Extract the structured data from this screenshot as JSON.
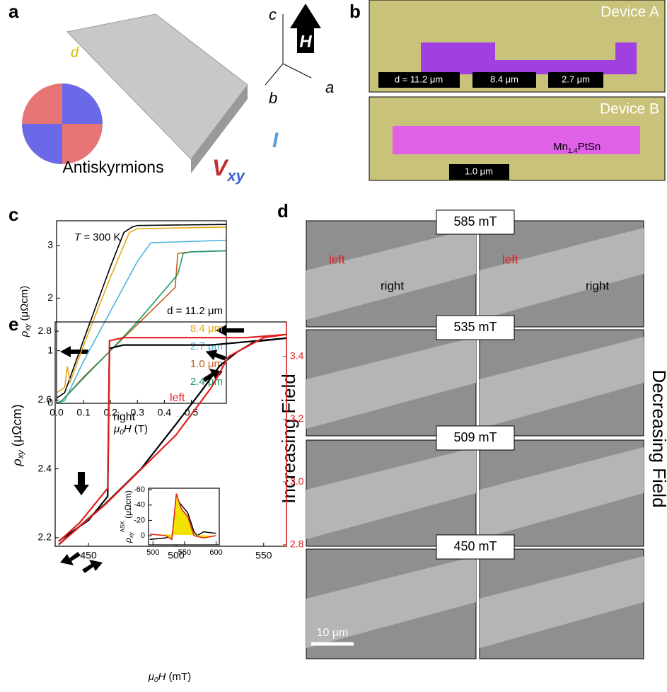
{
  "panels": {
    "a": {
      "label": "a",
      "caption": "Antiskyrmions",
      "thickness": "d",
      "axes": [
        "c",
        "b",
        "a"
      ],
      "field": "H",
      "voltage": [
        "V",
        "xy"
      ],
      "current": "I"
    },
    "b": {
      "label": "b",
      "device_a": "Device A",
      "widths": [
        "d = 11.2 μm",
        "8.4 μm",
        "2.7 μm"
      ],
      "device_b": "Device B",
      "material": [
        "Mn",
        "1.4",
        "PtSn"
      ],
      "width_b": "1.0 μm"
    },
    "d": {
      "label": "d",
      "fields": [
        "585 mT",
        "535 mT",
        "509 mT",
        "450 mT"
      ],
      "left": "left",
      "right": "right",
      "increasing": "Increasing Field",
      "decreasing": "Decreasing Field",
      "scale": "10 μm"
    }
  },
  "chart_data": [
    {
      "type": "line",
      "label": "c",
      "annotation": [
        "T",
        " = 300 K"
      ],
      "xlabel": [
        "μ",
        "0",
        "H",
        " (T)"
      ],
      "ylabel": [
        "ρ",
        "xy",
        " (μΩcm)"
      ],
      "xlim": [
        0,
        0.63
      ],
      "ylim": [
        0,
        3.47
      ],
      "xticks": [
        {
          "value": 0,
          "label": "0.0"
        },
        0.1,
        0.2,
        0.3,
        0.4,
        0.5
      ],
      "yticks": [
        0,
        1,
        2,
        3
      ],
      "series": [
        {
          "name": "d = 11.2 μm",
          "color": "#000000",
          "x": [
            0,
            0.03,
            0.1,
            0.2,
            0.25,
            0.28,
            0.3,
            0.63
          ],
          "values": [
            0.1,
            0.2,
            1.2,
            2.6,
            3.25,
            3.35,
            3.38,
            3.4
          ]
        },
        {
          "name": "8.4 μm",
          "color": "#e6a817",
          "x": [
            0,
            0.03,
            0.04,
            0.05,
            0.1,
            0.2,
            0.27,
            0.3,
            0.63
          ],
          "values": [
            0.2,
            0.3,
            0.7,
            0.4,
            1.1,
            2.4,
            3.25,
            3.32,
            3.35
          ]
        },
        {
          "name": "2.7 μm",
          "color": "#4eb3e0",
          "x": [
            0,
            0.03,
            0.1,
            0.2,
            0.3,
            0.35,
            0.63
          ],
          "values": [
            0,
            0.05,
            0.8,
            1.75,
            2.7,
            3.05,
            3.1
          ]
        },
        {
          "name": "1.0 μm",
          "color": "#c0601a",
          "x": [
            0,
            0.02,
            0.1,
            0.2,
            0.3,
            0.44,
            0.45,
            0.5,
            0.63
          ],
          "values": [
            0,
            0.05,
            0.5,
            1.0,
            1.5,
            2.2,
            2.85,
            2.88,
            2.9
          ]
        },
        {
          "name": "2.4 μm",
          "color": "#1a9a6a",
          "x": [
            0,
            0.02,
            0.1,
            0.2,
            0.3,
            0.45,
            0.47,
            0.5,
            0.63
          ],
          "values": [
            0,
            0.05,
            0.48,
            1.0,
            1.55,
            2.45,
            2.85,
            2.88,
            2.9
          ]
        }
      ]
    },
    {
      "type": "line",
      "label": "e",
      "xlabel": [
        "μ",
        "0",
        "H",
        " (mT)"
      ],
      "ylabel": [
        "ρ",
        "xy",
        " (μΩcm)"
      ],
      "xlim": [
        431,
        563
      ],
      "ylim": [
        2.175,
        2.827
      ],
      "y2lim": [
        2.795,
        3.51
      ],
      "xticks": [
        450,
        500,
        550
      ],
      "yticks": [
        2.2,
        2.4,
        2.6,
        2.8
      ],
      "y2ticks": [
        2.8,
        {
          "value": 3,
          "label": "3.0"
        },
        3.2,
        3.4
      ],
      "y2color": "#e02020",
      "series": [
        {
          "name": "right",
          "color": "#000000",
          "x": [
            433,
            460,
            480,
            500,
            515,
            525,
            535,
            545,
            563,
            520,
            470,
            462,
            461,
            450,
            433
          ],
          "values": [
            2.18,
            2.3,
            2.4,
            2.53,
            2.63,
            2.7,
            2.74,
            2.77,
            2.78,
            2.76,
            2.76,
            2.75,
            2.32,
            2.25,
            2.19
          ]
        },
        {
          "name": "left",
          "color": "#e02020",
          "axis": "y2",
          "x": [
            433,
            460,
            500,
            520,
            530,
            540,
            550,
            563,
            540,
            470,
            462,
            461,
            445,
            433
          ],
          "values": [
            2.8,
            2.93,
            3.15,
            3.3,
            3.4,
            3.43,
            3.46,
            3.47,
            3.46,
            3.46,
            3.45,
            2.98,
            2.87,
            2.81
          ]
        }
      ]
    },
    {
      "type": "line",
      "ylabel": [
        "ρ",
        "xy",
        "ASK",
        " (μΩcm)"
      ],
      "xlim": [
        493,
        605
      ],
      "ylim": [
        -62,
        12
      ],
      "inverted": true,
      "xticks": [
        500,
        550,
        600
      ],
      "yticks": [
        -60,
        -40,
        -20,
        0
      ],
      "series": [
        {
          "color": "#000000",
          "x": [
            495,
            520,
            530,
            535,
            540,
            545,
            555,
            565,
            570,
            580,
            600
          ],
          "values": [
            5,
            3,
            0,
            -20,
            -45,
            -40,
            -30,
            -5,
            0,
            -5,
            -3
          ]
        },
        {
          "color": "#e02020",
          "fill": "#f2e200",
          "x": [
            495,
            520,
            530,
            537,
            545,
            555,
            565,
            580,
            600
          ],
          "values": [
            -2,
            0,
            5,
            -55,
            -35,
            -25,
            0,
            3,
            0
          ]
        }
      ]
    }
  ]
}
